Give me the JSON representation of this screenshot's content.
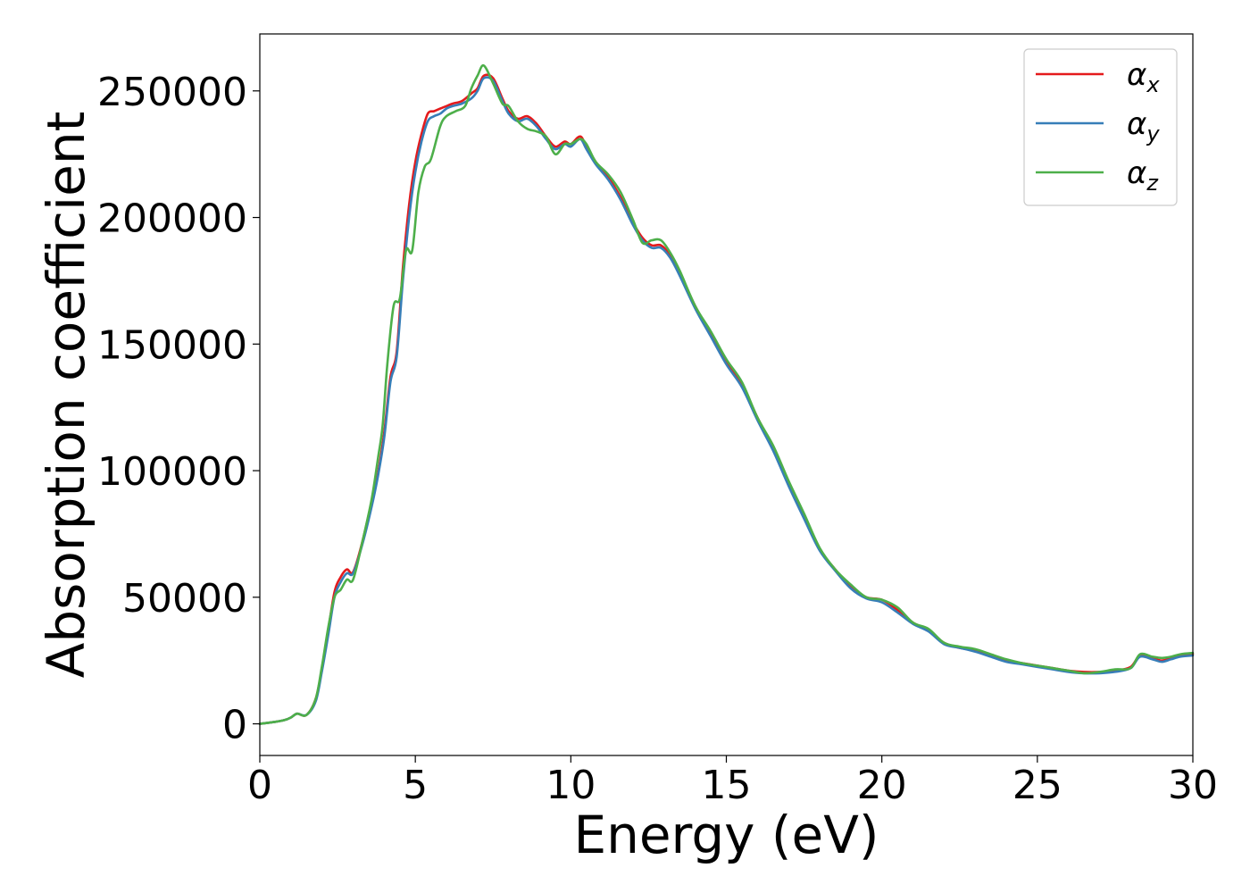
{
  "chart_data": {
    "type": "line",
    "title": "",
    "xlabel": "Energy (eV)",
    "ylabel": "Absorption coefficient",
    "xlim": [
      0,
      30
    ],
    "ylim": [
      -12500,
      272500
    ],
    "xticks": [
      0,
      5,
      10,
      15,
      20,
      25,
      30
    ],
    "xtick_labels": [
      "0",
      "5",
      "10",
      "15",
      "20",
      "25",
      "30"
    ],
    "yticks": [
      0,
      50000,
      100000,
      150000,
      200000,
      250000
    ],
    "ytick_labels": [
      "0",
      "50000",
      "100000",
      "150000",
      "200000",
      "250000"
    ],
    "grid": false,
    "legend": "top-right",
    "series": [
      {
        "name": "α",
        "subscript": "x",
        "color": "#e41a1c",
        "x": [
          0,
          0.5,
          0.8,
          1.0,
          1.2,
          1.5,
          1.8,
          2.0,
          2.2,
          2.4,
          2.6,
          2.8,
          3.0,
          3.3,
          3.6,
          3.8,
          4.0,
          4.2,
          4.4,
          4.6,
          4.8,
          5.0,
          5.2,
          5.4,
          5.6,
          5.8,
          6.0,
          6.2,
          6.5,
          6.8,
          7.0,
          7.2,
          7.5,
          7.8,
          8.0,
          8.3,
          8.6,
          8.9,
          9.2,
          9.5,
          9.8,
          10.0,
          10.3,
          10.5,
          10.8,
          11.2,
          11.6,
          12.0,
          12.3,
          12.6,
          12.9,
          13.2,
          13.5,
          14.0,
          14.5,
          15.0,
          15.5,
          16.0,
          16.5,
          17.0,
          17.5,
          18.0,
          18.5,
          19.0,
          19.5,
          20.0,
          20.5,
          21.0,
          21.5,
          22.0,
          22.5,
          23.0,
          23.5,
          24.0,
          24.5,
          25.0,
          25.5,
          26.0,
          26.5,
          27.0,
          27.5,
          28.0,
          28.3,
          28.7,
          29.0,
          29.3,
          29.6,
          30.0
        ],
        "values": [
          0,
          800,
          1500,
          2500,
          4000,
          3500,
          10000,
          22000,
          37000,
          52000,
          58000,
          61000,
          60000,
          72000,
          88000,
          99000,
          115000,
          137000,
          147000,
          180000,
          205000,
          222000,
          233000,
          241000,
          242000,
          243000,
          244000,
          245000,
          246000,
          249000,
          251000,
          256000,
          255000,
          247000,
          242000,
          239000,
          240000,
          237000,
          232000,
          228000,
          230000,
          229000,
          232000,
          228000,
          222000,
          216000,
          208000,
          198000,
          192000,
          189000,
          189000,
          185000,
          178000,
          165000,
          154000,
          143000,
          134000,
          121000,
          109000,
          95000,
          82000,
          69000,
          61000,
          54000,
          50000,
          49000,
          45000,
          40000,
          37000,
          32000,
          30000,
          29000,
          27000,
          25000,
          24000,
          23000,
          22000,
          21000,
          20500,
          20500,
          21000,
          22500,
          27000,
          26000,
          25000,
          26000,
          27000,
          27500
        ]
      },
      {
        "name": "α",
        "subscript": "y",
        "color": "#377eb8",
        "x": [
          0,
          0.5,
          0.8,
          1.0,
          1.2,
          1.5,
          1.8,
          2.0,
          2.2,
          2.4,
          2.6,
          2.8,
          3.0,
          3.3,
          3.6,
          3.8,
          4.0,
          4.2,
          4.4,
          4.6,
          4.8,
          5.0,
          5.2,
          5.4,
          5.6,
          5.8,
          6.0,
          6.2,
          6.5,
          6.8,
          7.0,
          7.2,
          7.5,
          7.8,
          8.0,
          8.3,
          8.6,
          8.9,
          9.2,
          9.5,
          9.8,
          10.0,
          10.3,
          10.5,
          10.8,
          11.2,
          11.6,
          12.0,
          12.3,
          12.6,
          12.9,
          13.2,
          13.5,
          14.0,
          14.5,
          15.0,
          15.5,
          16.0,
          16.5,
          17.0,
          17.5,
          18.0,
          18.5,
          19.0,
          19.5,
          20.0,
          20.5,
          21.0,
          21.5,
          22.0,
          22.5,
          23.0,
          23.5,
          24.0,
          24.5,
          25.0,
          25.5,
          26.0,
          26.5,
          27.0,
          27.5,
          28.0,
          28.3,
          28.7,
          29.0,
          29.3,
          29.6,
          30.0
        ],
        "values": [
          0,
          800,
          1500,
          2500,
          4000,
          3500,
          9000,
          21000,
          35000,
          50000,
          56000,
          59500,
          59500,
          71000,
          86000,
          98000,
          113000,
          135000,
          145000,
          175000,
          200000,
          218000,
          230000,
          238000,
          240000,
          241000,
          243000,
          244000,
          245000,
          247000,
          250000,
          255000,
          254000,
          246000,
          241000,
          238000,
          239000,
          236000,
          231000,
          227000,
          229000,
          228000,
          231000,
          227000,
          221000,
          215000,
          207000,
          197000,
          191000,
          188000,
          188000,
          184000,
          177000,
          164000,
          153000,
          142000,
          133000,
          120000,
          108000,
          94000,
          81000,
          68500,
          60500,
          53500,
          49500,
          48000,
          44000,
          39500,
          36500,
          31500,
          30000,
          28500,
          26500,
          24500,
          23500,
          22500,
          21500,
          20500,
          20000,
          20000,
          20500,
          22000,
          26500,
          25500,
          24500,
          25500,
          26500,
          27000
        ]
      },
      {
        "name": "α",
        "subscript": "z",
        "color": "#4daf4a",
        "x": [
          0,
          0.5,
          0.8,
          1.0,
          1.2,
          1.5,
          1.8,
          2.0,
          2.2,
          2.4,
          2.6,
          2.8,
          3.0,
          3.3,
          3.6,
          3.8,
          3.95,
          4.1,
          4.3,
          4.5,
          4.7,
          4.9,
          5.1,
          5.3,
          5.5,
          5.8,
          6.0,
          6.3,
          6.6,
          6.8,
          7.0,
          7.2,
          7.5,
          7.8,
          8.0,
          8.3,
          8.6,
          8.9,
          9.2,
          9.5,
          9.8,
          10.0,
          10.3,
          10.5,
          10.8,
          11.2,
          11.6,
          12.0,
          12.3,
          12.6,
          12.9,
          13.2,
          13.5,
          14.0,
          14.5,
          15.0,
          15.5,
          16.0,
          16.5,
          17.0,
          17.5,
          18.0,
          18.5,
          19.0,
          19.5,
          20.0,
          20.5,
          21.0,
          21.5,
          22.0,
          22.5,
          23.0,
          23.5,
          24.0,
          24.5,
          25.0,
          25.5,
          26.0,
          26.5,
          27.0,
          27.5,
          28.0,
          28.3,
          28.7,
          29.0,
          29.3,
          29.6,
          30.0
        ],
        "values": [
          0,
          800,
          1500,
          2500,
          4000,
          3500,
          10000,
          23000,
          38000,
          50000,
          53000,
          57000,
          57000,
          72000,
          89000,
          105000,
          118000,
          142000,
          165000,
          168000,
          187000,
          187000,
          210000,
          220000,
          223000,
          236000,
          240000,
          242000,
          244000,
          251000,
          256000,
          260000,
          253000,
          245000,
          244000,
          238000,
          235000,
          234000,
          232000,
          225000,
          229000,
          229000,
          231000,
          229000,
          222000,
          217000,
          210000,
          199000,
          190000,
          191000,
          191000,
          186000,
          179000,
          165000,
          155000,
          144000,
          135000,
          121000,
          110000,
          96000,
          83000,
          69500,
          61000,
          55000,
          50000,
          49000,
          46000,
          40000,
          37500,
          32000,
          30500,
          29500,
          27500,
          25500,
          24000,
          23000,
          22000,
          21000,
          20000,
          20500,
          21500,
          22000,
          27500,
          26500,
          26000,
          26500,
          27500,
          28000
        ]
      }
    ]
  }
}
